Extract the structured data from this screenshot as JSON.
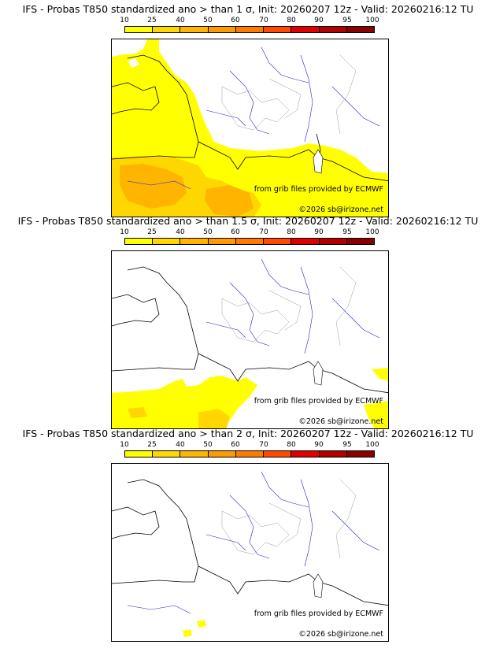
{
  "legend": {
    "ticks": [
      "10",
      "25",
      "40",
      "50",
      "60",
      "70",
      "80",
      "90",
      "95",
      "100"
    ],
    "colors": [
      "#ffff00",
      "#ffd700",
      "#ffb400",
      "#ff9900",
      "#ff7a00",
      "#ff4a00",
      "#e00000",
      "#b00000",
      "#8a0000",
      "#5a0000"
    ]
  },
  "panels": [
    {
      "title": "IFS - Probas T850  standardized ano > than 1 σ, Init: 20260207 12z - Valid: 20260216:12 TU"
    },
    {
      "title": "IFS - Probas T850  standardized ano > than 1.5 σ, Init: 20260207 12z - Valid: 20260216:12 TU"
    },
    {
      "title": "IFS - Probas T850  standardized ano > than 2 σ, Init: 20260207 12z - Valid: 20260216:12 TU"
    }
  ],
  "credits": {
    "source": "from grib files provided by ECMWF",
    "copyright": "©2026 sb@irizone.net"
  }
}
